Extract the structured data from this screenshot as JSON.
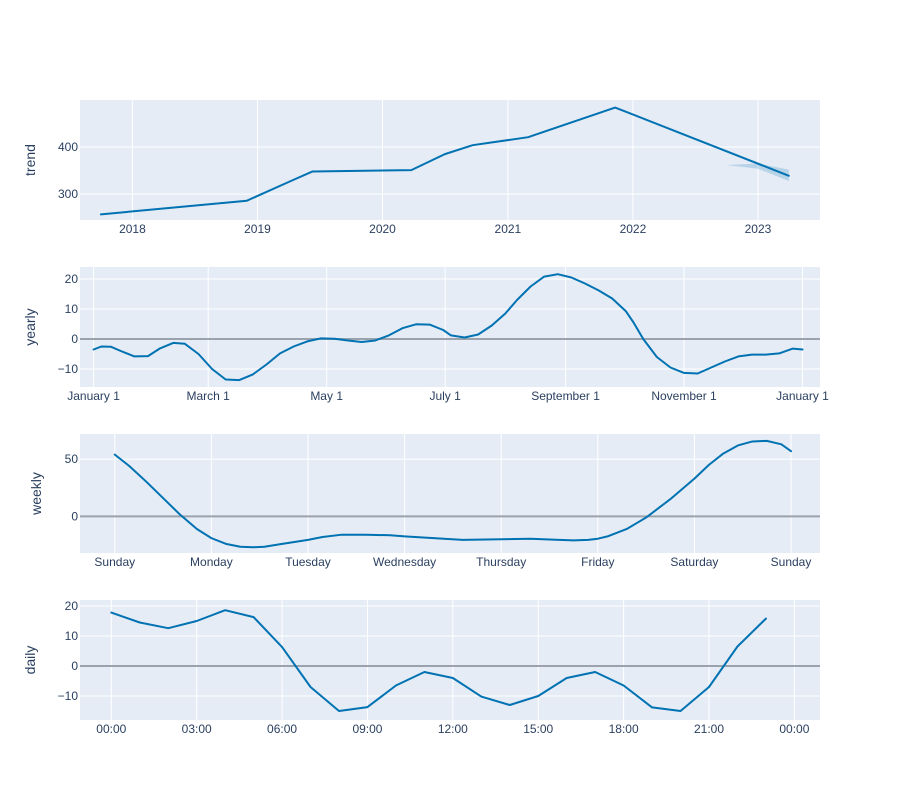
{
  "colors": {
    "plot_background": "#e5ecf6",
    "grid": "#ffffff",
    "line": "#0072b2",
    "band": "#0072b2",
    "zero_line": "#9aa3ad",
    "text": "#2a3f5f"
  },
  "chart_data": [
    {
      "type": "line",
      "id": "trend",
      "ylabel": "trend",
      "x_type": "date",
      "xlim": [
        "2017-08-01",
        "2023-07-01"
      ],
      "ylim": [
        245,
        500
      ],
      "x_ticks": [
        "2018-01-01",
        "2019-01-01",
        "2020-01-01",
        "2021-01-01",
        "2022-01-01",
        "2023-01-01"
      ],
      "x_tick_labels": [
        "2018",
        "2019",
        "2020",
        "2021",
        "2022",
        "2023"
      ],
      "y_ticks": [
        300,
        400
      ],
      "y_tick_labels": [
        "300",
        "400"
      ],
      "zero_line": false,
      "series": [
        {
          "x": [
            "2017-10-01",
            "2018-12-01",
            "2019-04-15",
            "2019-06-10",
            "2020-03-25",
            "2020-07-01",
            "2020-09-20",
            "2021-03-01",
            "2021-11-10",
            "2023-04-01"
          ],
          "y": [
            257,
            286,
            330,
            348,
            351,
            385,
            404,
            421,
            484,
            339
          ]
        }
      ],
      "band": {
        "x": [
          "2022-10-01",
          "2023-01-01",
          "2023-04-01"
        ],
        "lower": [
          362,
          354,
          328
        ],
        "upper": [
          362,
          365,
          352
        ]
      }
    },
    {
      "type": "line",
      "id": "yearly",
      "ylabel": "yearly",
      "x_type": "date",
      "xlim": [
        "2017-12-25",
        "2019-01-10"
      ],
      "ylim": [
        -16,
        24
      ],
      "x_ticks": [
        "2018-01-01",
        "2018-03-01",
        "2018-05-01",
        "2018-07-01",
        "2018-09-01",
        "2018-11-01",
        "2019-01-01"
      ],
      "x_tick_labels": [
        "January  1",
        "March  1",
        "May  1",
        "July  1",
        "September  1",
        "November  1",
        "January  1"
      ],
      "y_ticks": [
        -10,
        0,
        10,
        20
      ],
      "y_tick_labels": [
        "−10",
        "0",
        "10",
        "20"
      ],
      "zero_line": true,
      "series": [
        {
          "x": [
            "2018-01-01",
            "2018-01-05",
            "2018-01-10",
            "2018-01-15",
            "2018-01-22",
            "2018-01-29",
            "2018-02-04",
            "2018-02-11",
            "2018-02-17",
            "2018-02-24",
            "2018-03-03",
            "2018-03-10",
            "2018-03-17",
            "2018-03-24",
            "2018-03-31",
            "2018-04-07",
            "2018-04-14",
            "2018-04-21",
            "2018-04-28",
            "2018-05-05",
            "2018-05-12",
            "2018-05-19",
            "2018-05-26",
            "2018-06-02",
            "2018-06-09",
            "2018-06-16",
            "2018-06-23",
            "2018-06-30",
            "2018-07-04",
            "2018-07-11",
            "2018-07-18",
            "2018-07-25",
            "2018-08-01",
            "2018-08-07",
            "2018-08-14",
            "2018-08-21",
            "2018-08-28",
            "2018-09-04",
            "2018-09-11",
            "2018-09-18",
            "2018-09-25",
            "2018-10-02",
            "2018-10-06",
            "2018-10-11",
            "2018-10-18",
            "2018-10-25",
            "2018-11-01",
            "2018-11-08",
            "2018-11-15",
            "2018-11-22",
            "2018-11-29",
            "2018-12-06",
            "2018-12-13",
            "2018-12-20",
            "2018-12-27",
            "2019-01-01"
          ],
          "y": [
            -3.5,
            -2.5,
            -2.6,
            -4,
            -5.8,
            -5.7,
            -3.2,
            -1.3,
            -1.6,
            -5,
            -10,
            -13.5,
            -13.7,
            -11.8,
            -8.5,
            -4.8,
            -2.5,
            -0.8,
            0.2,
            0.1,
            -0.5,
            -1,
            -0.5,
            1.2,
            3.6,
            4.9,
            4.8,
            3,
            1.2,
            0.5,
            1.5,
            4.5,
            8.5,
            13,
            17.5,
            20.8,
            21.6,
            20.5,
            18.5,
            16.2,
            13.5,
            9.3,
            5.5,
            0,
            -6,
            -9.5,
            -11.3,
            -11.5,
            -9.5,
            -7.5,
            -5.8,
            -5.2,
            -5.2,
            -4.8,
            -3.2,
            -3.5
          ]
        }
      ]
    },
    {
      "type": "line",
      "id": "weekly",
      "ylabel": "weekly",
      "x_type": "category_index",
      "xlim": [
        -0.36,
        7.3
      ],
      "ylim": [
        -32,
        72
      ],
      "x_ticks": [
        0,
        1,
        2,
        3,
        4,
        5,
        6,
        7
      ],
      "x_tick_labels": [
        "Sunday",
        "Monday",
        "Tuesday",
        "Wednesday",
        "Thursday",
        "Friday",
        "Saturday",
        "Sunday"
      ],
      "y_ticks": [
        0,
        50
      ],
      "y_tick_labels": [
        "0",
        "50"
      ],
      "zero_line": true,
      "series": [
        {
          "x": [
            0,
            0.15,
            0.33,
            0.5,
            0.67,
            0.85,
            1,
            1.15,
            1.3,
            1.43,
            1.55,
            1.7,
            1.85,
            2,
            2.15,
            2.35,
            2.6,
            2.85,
            3,
            3.3,
            3.6,
            4,
            4.3,
            4.6,
            4.75,
            4.9,
            5,
            5.1,
            5.3,
            5.5,
            5.75,
            6,
            6.15,
            6.3,
            6.45,
            6.6,
            6.75,
            6.9,
            7
          ],
          "y": [
            54,
            44,
            30,
            16,
            2,
            -11,
            -19,
            -24,
            -26.5,
            -27,
            -26.5,
            -24.5,
            -22.5,
            -20.5,
            -18,
            -16,
            -16,
            -16.5,
            -17.5,
            -19,
            -20.5,
            -20,
            -19.5,
            -20.5,
            -21,
            -20.5,
            -19.5,
            -17.5,
            -11,
            -1,
            15,
            33,
            45,
            55,
            62,
            65.5,
            66,
            63,
            57
          ]
        }
      ]
    },
    {
      "type": "line",
      "id": "daily",
      "ylabel": "daily",
      "x_type": "hour",
      "xlim": [
        -1.1,
        24.9
      ],
      "ylim": [
        -18,
        22
      ],
      "x_ticks": [
        0,
        3,
        6,
        9,
        12,
        15,
        18,
        21,
        24
      ],
      "x_tick_labels": [
        "00:00",
        "03:00",
        "06:00",
        "09:00",
        "12:00",
        "15:00",
        "18:00",
        "21:00",
        "00:00"
      ],
      "y_ticks": [
        -10,
        0,
        10,
        20
      ],
      "y_tick_labels": [
        "−10",
        "0",
        "10",
        "20"
      ],
      "zero_line": true,
      "series": [
        {
          "x": [
            0,
            1,
            2,
            3,
            4,
            5,
            6,
            7,
            8,
            9,
            10,
            11,
            12,
            13,
            14,
            15,
            16,
            17,
            18,
            19,
            20,
            21,
            22,
            23
          ],
          "y": [
            17.8,
            14.5,
            12.6,
            15,
            18.6,
            16.3,
            6.3,
            -7,
            -15,
            -13.7,
            -6.5,
            -2,
            -4,
            -10.2,
            -13,
            -10,
            -4,
            -2,
            -6.5,
            -13.8,
            -15,
            -7,
            6.5,
            15.8
          ]
        }
      ]
    }
  ]
}
